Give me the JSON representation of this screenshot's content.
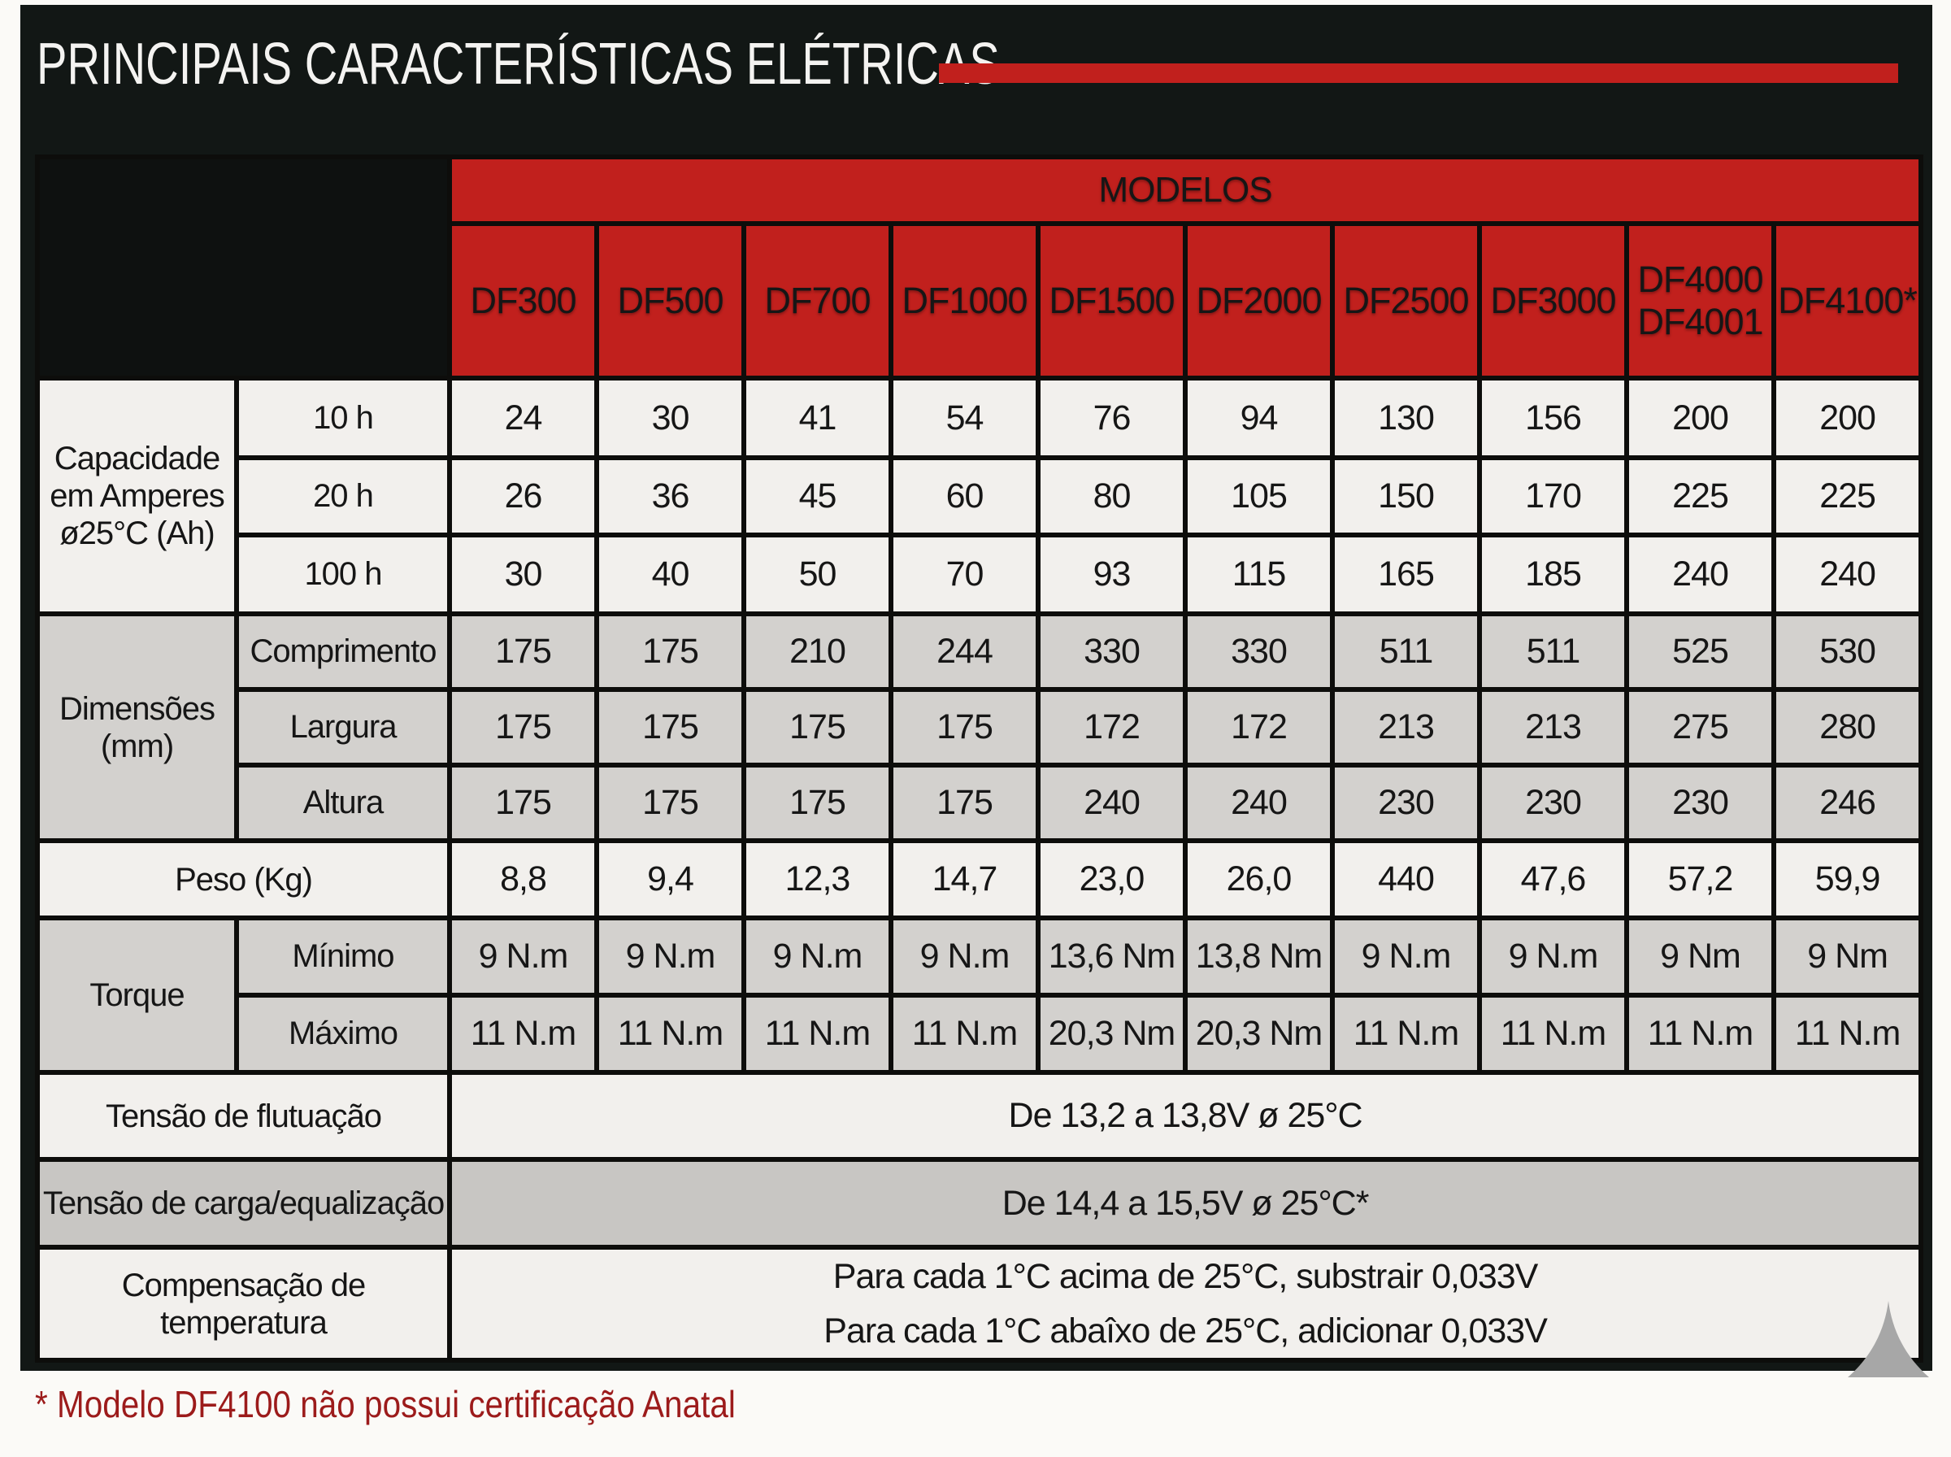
{
  "header": {
    "title": "PRINCIPAIS CARACTERÍSTICAS ELÉTRICAS"
  },
  "colors": {
    "accent_red": "#c1201d",
    "panel_dark": "#121715",
    "footnote_red": "#9c1b1b",
    "row_light": "#f2f0ed",
    "row_gray": "#d3d1ce"
  },
  "table": {
    "models_title": "MODELOS",
    "models": [
      "DF300",
      "DF500",
      "DF700",
      "DF1000",
      "DF1500",
      "DF2000",
      "DF2500",
      "DF3000",
      "DF4000\nDF4001",
      "DF4100*"
    ],
    "capacity": {
      "label": "Capacidade\nem Amperes\nø25°C (Ah)",
      "rows": [
        {
          "label": "10 h",
          "values": [
            "24",
            "30",
            "41",
            "54",
            "76",
            "94",
            "130",
            "156",
            "200",
            "200"
          ]
        },
        {
          "label": "20 h",
          "values": [
            "26",
            "36",
            "45",
            "60",
            "80",
            "105",
            "150",
            "170",
            "225",
            "225"
          ]
        },
        {
          "label": "100 h",
          "values": [
            "30",
            "40",
            "50",
            "70",
            "93",
            "115",
            "165",
            "185",
            "240",
            "240"
          ]
        }
      ]
    },
    "dimensions": {
      "label": "Dimensões (mm)",
      "rows": [
        {
          "label": "Comprimento",
          "values": [
            "175",
            "175",
            "210",
            "244",
            "330",
            "330",
            "511",
            "511",
            "525",
            "530"
          ]
        },
        {
          "label": "Largura",
          "values": [
            "175",
            "175",
            "175",
            "175",
            "172",
            "172",
            "213",
            "213",
            "275",
            "280"
          ]
        },
        {
          "label": "Altura",
          "values": [
            "175",
            "175",
            "175",
            "175",
            "240",
            "240",
            "230",
            "230",
            "230",
            "246"
          ]
        }
      ]
    },
    "weight": {
      "label": "Peso (Kg)",
      "values": [
        "8,8",
        "9,4",
        "12,3",
        "14,7",
        "23,0",
        "26,0",
        "440",
        "47,6",
        "57,2",
        "59,9"
      ]
    },
    "torque": {
      "label": "Torque",
      "rows": [
        {
          "label": "Mínimo",
          "values": [
            "9 N.m",
            "9 N.m",
            "9 N.m",
            "9 N.m",
            "13,6 Nm",
            "13,8 Nm",
            "9 N.m",
            "9 N.m",
            "9 Nm",
            "9 Nm"
          ]
        },
        {
          "label": "Máximo",
          "values": [
            "11 N.m",
            "11 N.m",
            "11 N.m",
            "11 N.m",
            "20,3 Nm",
            "20,3 Nm",
            "11 N.m",
            "11 N.m",
            "11 N.m",
            "11 N.m"
          ]
        }
      ]
    },
    "full_rows": [
      {
        "label": "Tensão de flutuação",
        "value": "De 13,2 a 13,8V ø 25°C"
      },
      {
        "label": "Tensão de carga/equalização",
        "value": "De 14,4 a 15,5V ø 25°C*"
      },
      {
        "label": "Compensação de temperatura",
        "value": "Para cada 1°C acima de 25°C, substrair 0,033V\nPara cada 1°C abaîxo de 25°C, adicionar 0,033V"
      }
    ]
  },
  "footnote": "* Modelo DF4100 não possui certificação Anatal"
}
